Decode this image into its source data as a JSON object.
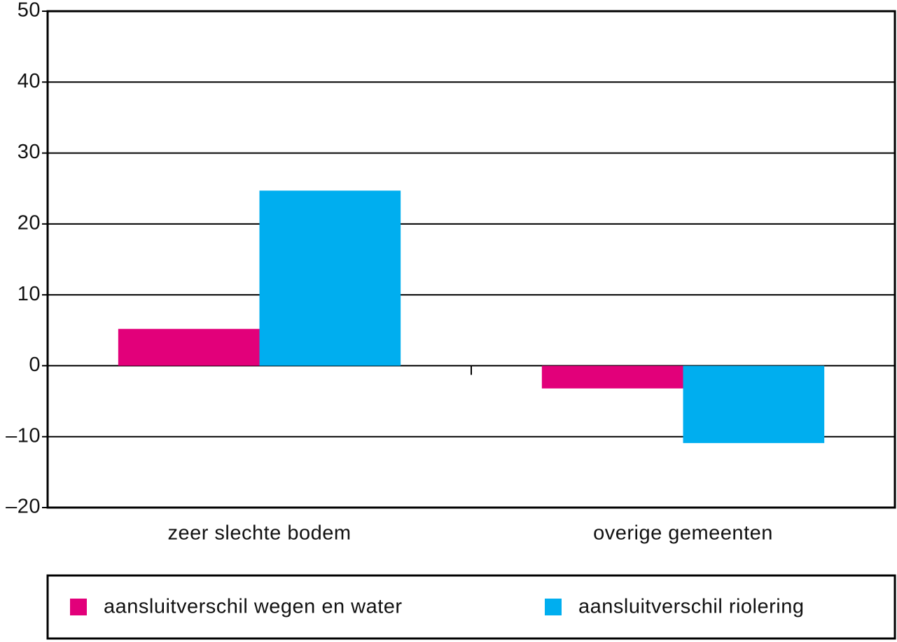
{
  "chart_data": {
    "type": "bar",
    "categories": [
      "zeer slechte bodem",
      "overige gemeenten"
    ],
    "series": [
      {
        "name": "aansluitverschil wegen en water",
        "color": "#e2007a",
        "values": [
          5.2,
          -3.2
        ]
      },
      {
        "name": "aansluitverschil riolering",
        "color": "#00aeef",
        "values": [
          24.7,
          -10.9
        ]
      }
    ],
    "ylim": [
      -20,
      50
    ],
    "yticks": [
      {
        "value": -20,
        "label": "–20"
      },
      {
        "value": -10,
        "label": "–10"
      },
      0,
      10,
      20,
      30,
      40,
      50
    ],
    "grid": true,
    "legend": "bottom"
  }
}
